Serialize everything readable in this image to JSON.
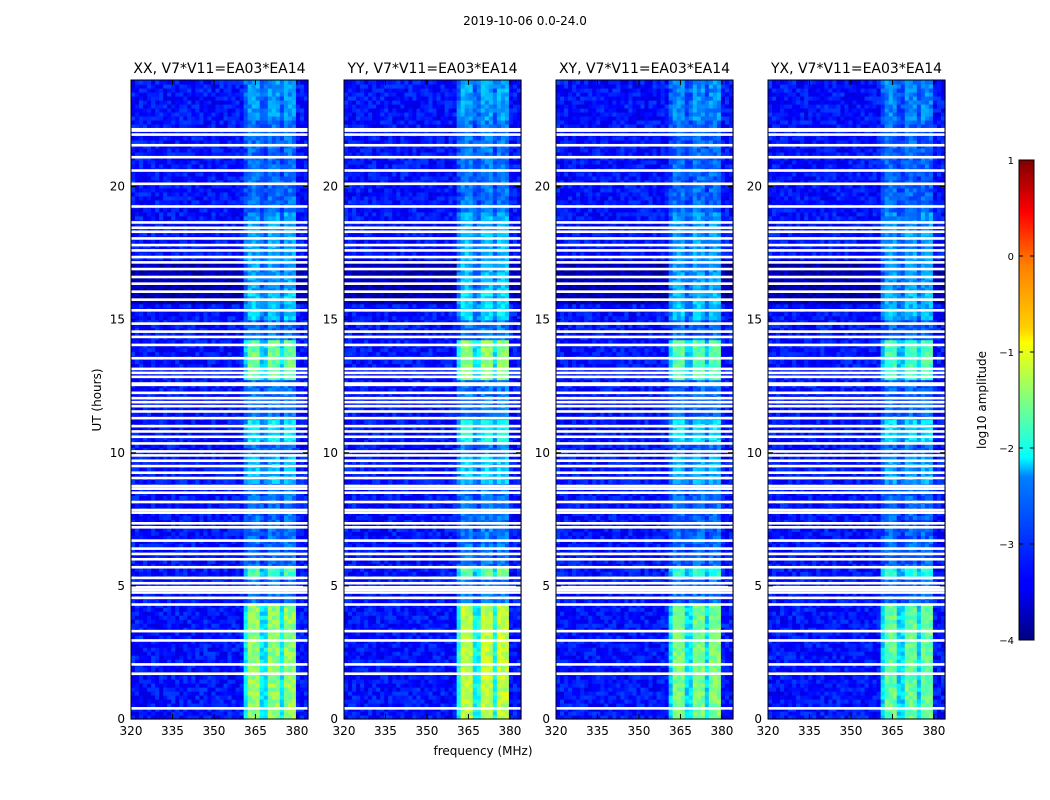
{
  "suptitle": "2019-10-06 0.0-24.0",
  "chart_data": {
    "type": "heatmap",
    "title": "2019-10-06 0.0-24.0",
    "xlabel": "frequency (MHz)",
    "ylabel": "UT (hours)",
    "xlim": [
      320,
      384
    ],
    "ylim": [
      0,
      24
    ],
    "xticks": [
      "320",
      "335",
      "350",
      "365",
      "380"
    ],
    "xtick_values": [
      320,
      335,
      350,
      365,
      380
    ],
    "yticks": [
      "0",
      "5",
      "10",
      "15",
      "20"
    ],
    "ytick_values": [
      0,
      5,
      10,
      15,
      20
    ],
    "panels": [
      {
        "title": "XX, V7*V11=EA03*EA14",
        "level": 0.9
      },
      {
        "title": "YY, V7*V11=EA03*EA14",
        "level": 1.0
      },
      {
        "title": "XY, V7*V11=EA03*EA14",
        "level": 0.85
      },
      {
        "title": "YX, V7*V11=EA03*EA14",
        "level": 0.8
      }
    ],
    "colorbar": {
      "label": "log10 amplitude",
      "range": [
        -4,
        1
      ],
      "ticks": [
        "1",
        "0",
        "−1",
        "−2",
        "−3",
        "−4"
      ],
      "tick_values": [
        1,
        0,
        -1,
        -2,
        -3,
        -4
      ],
      "colormap": "jet"
    },
    "background_log_amplitude": -3.3,
    "rfi_band_MHz": [
      361,
      380
    ],
    "rfi_channels_MHz": [
      364,
      371,
      378
    ],
    "rfi_log_amplitude_peak": -1.2,
    "flagged_hours": [
      0.4,
      1.7,
      2.05,
      2.95,
      3.3,
      4.3,
      4.55,
      4.75,
      4.85,
      4.95,
      5.1,
      5.3,
      5.7,
      6.0,
      6.2,
      6.4,
      6.7,
      7.2,
      7.35,
      7.75,
      7.85,
      8.15,
      8.5,
      8.65,
      8.75,
      9.05,
      9.25,
      9.5,
      9.7,
      9.9,
      10.05,
      10.35,
      10.6,
      10.8,
      11.0,
      11.3,
      11.55,
      11.75,
      11.9,
      12.05,
      12.25,
      12.55,
      12.6,
      12.85,
      13.0,
      13.15,
      13.55,
      14.05,
      14.35,
      14.55,
      14.85,
      15.35,
      15.75,
      16.05,
      16.35,
      16.6,
      16.9,
      17.15,
      17.35,
      17.6,
      17.8,
      18.05,
      18.3,
      18.45,
      18.65,
      19.25,
      20.1,
      20.6,
      21.1,
      21.55,
      21.95,
      22.1,
      22.15
    ]
  }
}
